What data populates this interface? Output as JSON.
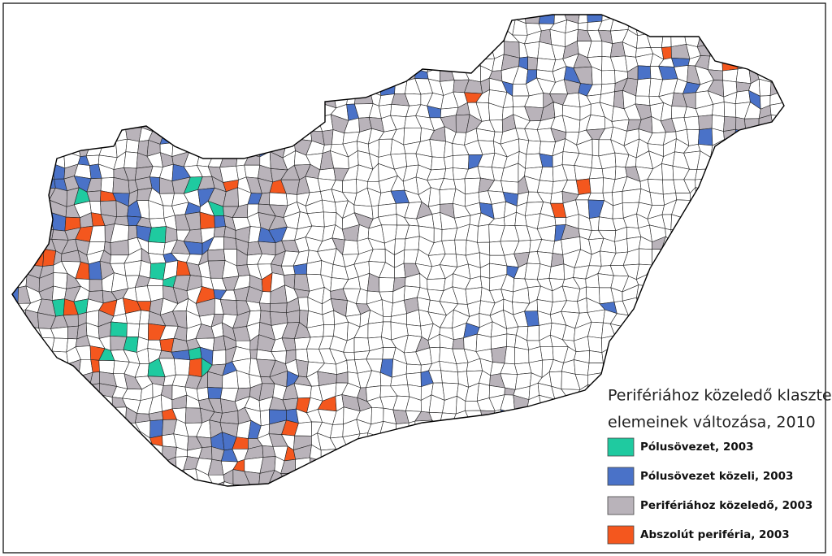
{
  "legend": {
    "title_lines": [
      "Perifériához közeledő klaszter",
      "elemeinek változása, 2010"
    ],
    "items": [
      {
        "label": "Pólusövezet, 2003",
        "color": "#1fcaa0"
      },
      {
        "label": "Pólusövezet közeli, 2003",
        "color": "#4a72c8"
      },
      {
        "label": "Perifériához közeledő, 2003",
        "color": "#b9b3ba"
      },
      {
        "label": "Abszolút periféria, 2003",
        "color": "#f4571e"
      }
    ]
  }
}
